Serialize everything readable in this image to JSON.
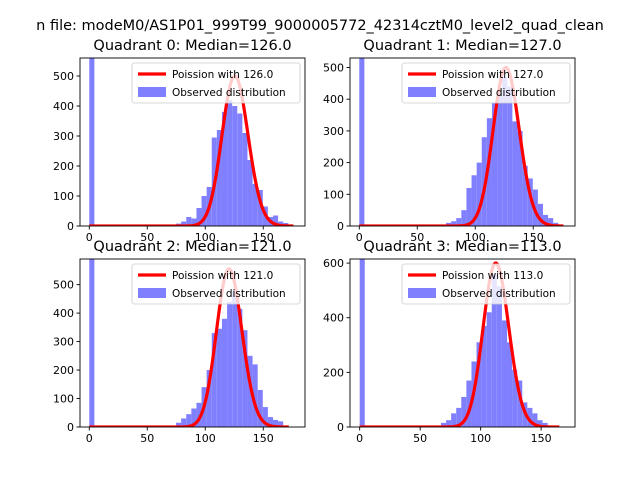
{
  "figure_title": "n file: modeM0/AS1P01_999T99_9000005772_42314cztM0_level2_quad_clean",
  "chart_data": [
    {
      "type": "bar",
      "title": "Quadrant 0: Median=126.0",
      "xlabel": "",
      "ylabel": "",
      "xlim": [
        -8,
        186
      ],
      "ylim": [
        0,
        560
      ],
      "xticks": [
        0,
        50,
        100,
        150
      ],
      "xtick_labels": [
        "0",
        "50",
        "100",
        "150"
      ],
      "yticks": [
        0,
        100,
        200,
        300,
        400,
        500
      ],
      "ytick_labels": [
        "0",
        "100",
        "200",
        "300",
        "400",
        "500"
      ],
      "legend": {
        "position": "top-right",
        "line_label": "Poission with 126.0",
        "hist_label": "Observed distribution"
      },
      "hist": {
        "label": "Observed distribution",
        "bin_width": 4.4,
        "bin_starts": [
          0,
          70.4,
          74.8,
          79.2,
          83.6,
          88.0,
          92.4,
          96.8,
          101.2,
          105.6,
          110.0,
          114.4,
          118.8,
          123.2,
          127.6,
          132.0,
          136.4,
          140.8,
          145.2,
          149.6,
          154.0,
          158.4,
          162.8,
          167.2,
          171.6
        ],
        "counts": [
          560,
          3,
          8,
          15,
          30,
          25,
          60,
          100,
          130,
          295,
          320,
          380,
          420,
          400,
          375,
          310,
          220,
          140,
          120,
          65,
          30,
          35,
          15,
          10,
          3
        ]
      },
      "poisson": {
        "label": "Poission with 126.0",
        "mean": 126.0,
        "scale": 500,
        "x_range": [
          0,
          176
        ]
      }
    },
    {
      "type": "bar",
      "title": "Quadrant 1: Median=127.0",
      "xlabel": "",
      "ylabel": "",
      "xlim": [
        -8,
        186
      ],
      "ylim": [
        0,
        530
      ],
      "xticks": [
        0,
        50,
        100,
        150
      ],
      "xtick_labels": [
        "0",
        "50",
        "100",
        "150"
      ],
      "yticks": [
        0,
        100,
        200,
        300,
        400,
        500
      ],
      "ytick_labels": [
        "0",
        "100",
        "200",
        "300",
        "400",
        "500"
      ],
      "legend": {
        "position": "top-right",
        "line_label": "Poission with 127.0",
        "hist_label": "Observed distribution"
      },
      "hist": {
        "label": "Observed distribution",
        "bin_width": 4.4,
        "bin_starts": [
          0,
          70.4,
          74.8,
          79.2,
          83.6,
          88.0,
          92.4,
          96.8,
          101.2,
          105.6,
          110.0,
          114.4,
          118.8,
          123.2,
          127.6,
          132.0,
          136.4,
          140.8,
          145.2,
          149.6,
          154.0,
          158.4,
          162.8,
          167.2,
          171.6
        ],
        "counts": [
          530,
          3,
          10,
          15,
          25,
          50,
          120,
          160,
          200,
          280,
          340,
          390,
          420,
          470,
          440,
          330,
          300,
          190,
          150,
          115,
          70,
          35,
          25,
          10,
          3
        ]
      },
      "poisson": {
        "label": "Poission with 127.0",
        "mean": 127.0,
        "scale": 500,
        "x_range": [
          0,
          176
        ]
      }
    },
    {
      "type": "bar",
      "title": "Quadrant 2: Median=121.0",
      "xlabel": "",
      "ylabel": "",
      "xlim": [
        -8,
        186
      ],
      "ylim": [
        0,
        590
      ],
      "xticks": [
        0,
        50,
        100,
        150
      ],
      "xtick_labels": [
        "0",
        "50",
        "100",
        "150"
      ],
      "yticks": [
        0,
        100,
        200,
        300,
        400,
        500
      ],
      "ytick_labels": [
        "0",
        "100",
        "200",
        "300",
        "400",
        "500"
      ],
      "legend": {
        "position": "top-right",
        "line_label": "Poission with 121.0",
        "hist_label": "Observed distribution"
      },
      "hist": {
        "label": "Observed distribution",
        "bin_width": 4.4,
        "bin_starts": [
          0,
          70.4,
          74.8,
          79.2,
          83.6,
          88.0,
          92.4,
          96.8,
          101.2,
          105.6,
          110.0,
          114.4,
          118.8,
          123.2,
          127.6,
          132.0,
          136.4,
          140.8,
          145.2,
          149.6,
          154.0,
          158.4,
          162.8,
          167.2
        ],
        "counts": [
          590,
          5,
          15,
          30,
          45,
          65,
          85,
          140,
          200,
          330,
          345,
          380,
          440,
          480,
          415,
          340,
          250,
          220,
          130,
          70,
          35,
          25,
          20,
          5
        ]
      },
      "poisson": {
        "label": "Poission with 121.0",
        "mean": 121.0,
        "scale": 555,
        "x_range": [
          0,
          172
        ]
      }
    },
    {
      "type": "bar",
      "title": "Quadrant 3: Median=113.0",
      "xlabel": "",
      "ylabel": "",
      "xlim": [
        -8,
        178
      ],
      "ylim": [
        0,
        615
      ],
      "xticks": [
        0,
        50,
        100,
        150
      ],
      "xtick_labels": [
        "0",
        "50",
        "100",
        "150"
      ],
      "yticks": [
        0,
        200,
        400,
        600
      ],
      "ytick_labels": [
        "0",
        "200",
        "400",
        "600"
      ],
      "legend": {
        "position": "top-right",
        "line_label": "Poission with 113.0",
        "hist_label": "Observed distribution"
      },
      "hist": {
        "label": "Observed distribution",
        "bin_width": 4.2,
        "bin_starts": [
          0,
          63.0,
          67.2,
          71.4,
          75.6,
          79.8,
          84.0,
          88.2,
          92.4,
          96.6,
          100.8,
          105.0,
          109.2,
          113.4,
          117.6,
          121.8,
          126.0,
          130.2,
          134.4,
          138.6,
          142.8,
          147.0,
          151.2,
          155.4
        ],
        "counts": [
          615,
          5,
          15,
          25,
          50,
          70,
          110,
          170,
          240,
          310,
          370,
          420,
          560,
          515,
          390,
          310,
          210,
          170,
          90,
          70,
          50,
          25,
          15,
          5
        ]
      },
      "poisson": {
        "label": "Poission with 113.0",
        "mean": 113.0,
        "scale": 600,
        "x_range": [
          0,
          165
        ]
      }
    }
  ]
}
